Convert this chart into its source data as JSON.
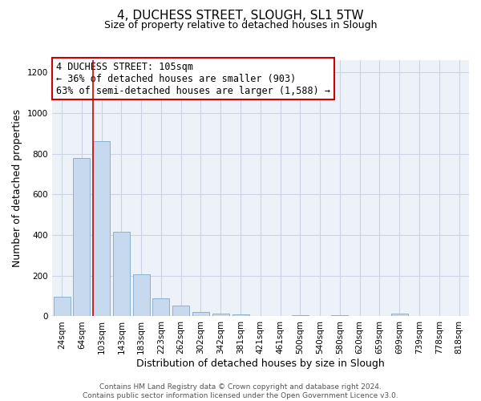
{
  "title": "4, DUCHESS STREET, SLOUGH, SL1 5TW",
  "subtitle": "Size of property relative to detached houses in Slough",
  "xlabel": "Distribution of detached houses by size in Slough",
  "ylabel": "Number of detached properties",
  "categories": [
    "24sqm",
    "64sqm",
    "103sqm",
    "143sqm",
    "183sqm",
    "223sqm",
    "262sqm",
    "302sqm",
    "342sqm",
    "381sqm",
    "421sqm",
    "461sqm",
    "500sqm",
    "540sqm",
    "580sqm",
    "620sqm",
    "659sqm",
    "699sqm",
    "739sqm",
    "778sqm",
    "818sqm"
  ],
  "values": [
    95,
    780,
    860,
    415,
    205,
    90,
    55,
    22,
    15,
    10,
    0,
    0,
    5,
    0,
    5,
    0,
    0,
    12,
    0,
    0,
    0
  ],
  "bar_color": "#c6d9ee",
  "bar_edge_color": "#8ab0d0",
  "marker_index": 2,
  "marker_line_color": "#cc0000",
  "annotation_text": "4 DUCHESS STREET: 105sqm\n← 36% of detached houses are smaller (903)\n63% of semi-detached houses are larger (1,588) →",
  "annotation_box_edge_color": "#cc0000",
  "ylim_max": 1260,
  "yticks": [
    0,
    200,
    400,
    600,
    800,
    1000,
    1200
  ],
  "grid_color": "#ccd4e4",
  "bg_color": "#edf1f8",
  "footer1": "Contains HM Land Registry data © Crown copyright and database right 2024.",
  "footer2": "Contains public sector information licensed under the Open Government Licence v3.0."
}
